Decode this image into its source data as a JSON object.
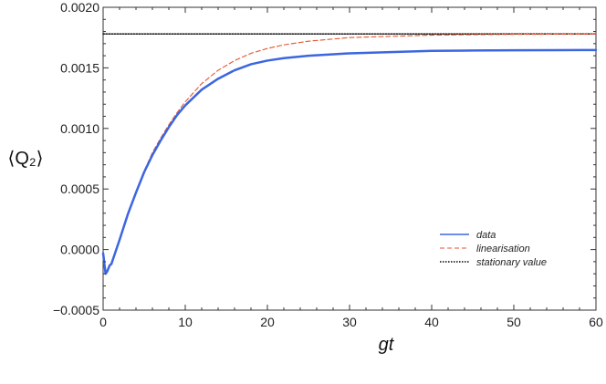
{
  "chart_data": {
    "type": "line",
    "title": "",
    "xlabel": "gt",
    "ylabel": "⟨Q₂⟩",
    "xlim": [
      0,
      60
    ],
    "ylim": [
      -0.0005,
      0.002
    ],
    "x_ticks": [
      0,
      10,
      20,
      30,
      40,
      50,
      60
    ],
    "y_ticks": [
      -0.0005,
      0.0,
      0.0005,
      0.001,
      0.0015,
      0.002
    ],
    "x_tick_labels": [
      "0",
      "10",
      "20",
      "30",
      "40",
      "50",
      "60"
    ],
    "y_tick_labels": [
      "−0.0005",
      "0.0000",
      "0.0005",
      "0.0010",
      "0.0015",
      "0.0020"
    ],
    "grid": false,
    "legend_position": "lower-right",
    "series": [
      {
        "name": "data",
        "style": "solid",
        "color": "#3B66E0",
        "x": [
          0,
          0.3,
          0.5,
          0.8,
          1.0,
          1.5,
          2,
          3,
          4,
          5,
          6,
          7,
          8,
          9,
          10,
          12,
          14,
          16,
          18,
          20,
          22,
          25,
          30,
          35,
          40,
          45,
          50,
          55,
          60
        ],
        "y": [
          -3e-05,
          -0.0002,
          -0.00018,
          -0.00013,
          -0.00012,
          -2e-05,
          8e-05,
          0.00029,
          0.00047,
          0.00064,
          0.00078,
          0.0009,
          0.00101,
          0.00111,
          0.00119,
          0.00132,
          0.00141,
          0.00148,
          0.00153,
          0.00156,
          0.00158,
          0.0016,
          0.00162,
          0.00163,
          0.00164,
          0.001643,
          0.001645,
          0.001646,
          0.001647
        ]
      },
      {
        "name": "linearisation",
        "style": "dashed",
        "color": "#E8532C",
        "x": [
          0,
          0.3,
          0.5,
          0.8,
          1.0,
          1.5,
          2,
          3,
          4,
          5,
          6,
          7,
          8,
          9,
          10,
          12,
          14,
          16,
          18,
          20,
          22,
          25,
          30,
          35,
          40,
          45,
          50,
          55,
          60
        ],
        "y": [
          -3e-05,
          -0.0002,
          -0.00017,
          -0.00013,
          -0.00011,
          -1e-05,
          9e-05,
          0.0003,
          0.00048,
          0.00065,
          0.0008,
          0.00092,
          0.00103,
          0.00113,
          0.00122,
          0.00137,
          0.00148,
          0.00156,
          0.00162,
          0.00166,
          0.00169,
          0.00172,
          0.00175,
          0.00176,
          0.00177,
          0.001774,
          0.001777,
          0.001778,
          0.001779
        ]
      },
      {
        "name": "stationary value",
        "style": "dotted",
        "color": "#000000",
        "x": [
          0,
          60
        ],
        "y": [
          0.00178,
          0.00178
        ]
      }
    ]
  }
}
